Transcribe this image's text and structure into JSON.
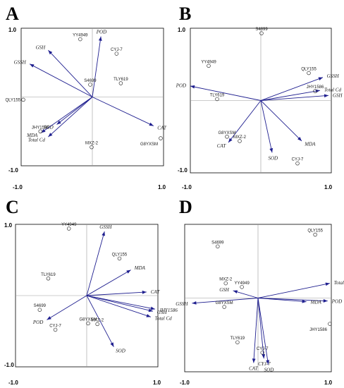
{
  "figure": {
    "colors": {
      "vector": "#1f1f8f",
      "point": "#333333",
      "frame": "#000000",
      "zero_line": "#9a9a9a"
    }
  },
  "chart_data": [
    {
      "type": "scatter",
      "panel": "A",
      "xlim": [
        -1.0,
        1.0
      ],
      "ylim": [
        -1.0,
        1.0
      ],
      "x_ticks": [
        "-1.0",
        "1.0"
      ],
      "y_ticks": [
        "1.0",
        "-1.0"
      ],
      "vectors": [
        {
          "name": "POD",
          "x": 0.12,
          "y": 0.88
        },
        {
          "name": "GSH",
          "x": -0.62,
          "y": 0.68
        },
        {
          "name": "GSSH",
          "x": -0.88,
          "y": 0.48
        },
        {
          "name": "CAT",
          "x": 0.86,
          "y": -0.42
        },
        {
          "name": "SOD",
          "x": -0.5,
          "y": -0.4
        },
        {
          "name": "MDA",
          "x": -0.72,
          "y": -0.52
        },
        {
          "name": "Total Cd",
          "x": -0.62,
          "y": -0.58
        }
      ],
      "points": [
        {
          "name": "YY4949",
          "x": -0.17,
          "y": 0.84
        },
        {
          "name": "CYJ-7",
          "x": 0.34,
          "y": 0.63
        },
        {
          "name": "S4699",
          "x": -0.03,
          "y": 0.18
        },
        {
          "name": "TLY619",
          "x": 0.4,
          "y": 0.2
        },
        {
          "name": "QLY155",
          "x": -0.97,
          "y": -0.04
        },
        {
          "name": "JHY1586",
          "x": -0.73,
          "y": -0.5
        },
        {
          "name": "G8YXSM",
          "x": 0.96,
          "y": -0.6
        },
        {
          "name": "MXZ-2",
          "x": -0.01,
          "y": -0.73
        }
      ]
    },
    {
      "type": "scatter",
      "panel": "B",
      "xlim": [
        -1.0,
        1.0
      ],
      "ylim": [
        -1.0,
        1.0
      ],
      "x_ticks": [
        "-1.0",
        "1.0"
      ],
      "y_ticks": [
        "1.0",
        "-1.0"
      ],
      "vectors": [
        {
          "name": "POD",
          "x": -1.0,
          "y": 0.2
        },
        {
          "name": "GSSH",
          "x": 0.88,
          "y": 0.32
        },
        {
          "name": "Total Cd",
          "x": 0.84,
          "y": 0.14
        },
        {
          "name": "GSH",
          "x": 0.96,
          "y": 0.07
        },
        {
          "name": "MDA",
          "x": 0.58,
          "y": -0.56
        },
        {
          "name": "CAT",
          "x": -0.46,
          "y": -0.58
        },
        {
          "name": "SOD",
          "x": 0.16,
          "y": -0.72
        }
      ],
      "points": [
        {
          "name": "S4699",
          "x": 0.01,
          "y": 0.93
        },
        {
          "name": "YY4949",
          "x": -0.74,
          "y": 0.48
        },
        {
          "name": "QLY155",
          "x": 0.68,
          "y": 0.38
        },
        {
          "name": "JHY1586",
          "x": 0.77,
          "y": 0.13
        },
        {
          "name": "TLY619",
          "x": -0.62,
          "y": 0.02
        },
        {
          "name": "G8YXSM",
          "x": -0.48,
          "y": -0.5
        },
        {
          "name": "MXZ-2",
          "x": -0.3,
          "y": -0.56
        },
        {
          "name": "CYJ-7",
          "x": 0.52,
          "y": -0.87
        }
      ]
    },
    {
      "type": "scatter",
      "panel": "C",
      "xlim": [
        -1.0,
        1.0
      ],
      "ylim": [
        -1.0,
        1.0
      ],
      "x_ticks": [
        "-1.0",
        "1.0"
      ],
      "y_ticks": [
        "1.0",
        "-1.0"
      ],
      "vectors": [
        {
          "name": "GSSH",
          "x": 0.25,
          "y": 0.9
        },
        {
          "name": "MDA",
          "x": 0.62,
          "y": 0.36
        },
        {
          "name": "CAT",
          "x": 0.84,
          "y": 0.05
        },
        {
          "name": "GSH",
          "x": 0.93,
          "y": -0.22
        },
        {
          "name": "JHY1586",
          "x": 0.96,
          "y": -0.19
        },
        {
          "name": "Total Cd",
          "x": 0.9,
          "y": -0.3
        },
        {
          "name": "SOD",
          "x": 0.38,
          "y": -0.72
        },
        {
          "name": "POD",
          "x": -0.56,
          "y": -0.34
        }
      ],
      "points": [
        {
          "name": "YY4949",
          "x": -0.25,
          "y": 0.94
        },
        {
          "name": "QLY155",
          "x": 0.46,
          "y": 0.52
        },
        {
          "name": "TLY619",
          "x": -0.54,
          "y": 0.24
        },
        {
          "name": "S4699",
          "x": -0.66,
          "y": -0.2
        },
        {
          "name": "G8YXSM",
          "x": 0.02,
          "y": -0.39
        },
        {
          "name": "MXZ-2",
          "x": 0.15,
          "y": -0.4
        },
        {
          "name": "CYJ-7",
          "x": -0.44,
          "y": -0.48
        }
      ]
    },
    {
      "type": "scatter",
      "panel": "D",
      "xlim": [
        -1.0,
        1.0
      ],
      "ylim": [
        -1.0,
        1.0
      ],
      "x_ticks": [
        "-1.0",
        "1.0"
      ],
      "y_ticks": [],
      "vectors": [
        {
          "name": "Total Cd",
          "x": 0.98,
          "y": 0.2
        },
        {
          "name": "POD",
          "x": 0.95,
          "y": -0.04
        },
        {
          "name": "MDA",
          "x": 0.66,
          "y": -0.05
        },
        {
          "name": "GSH",
          "x": -0.34,
          "y": 0.1
        },
        {
          "name": "GSSH",
          "x": -0.9,
          "y": -0.07
        },
        {
          "name": "CAT",
          "x": -0.06,
          "y": -0.88
        },
        {
          "name": "CYJ-7",
          "x": 0.08,
          "y": -0.82
        },
        {
          "name": "SOD",
          "x": 0.14,
          "y": -0.9
        }
      ],
      "points": [
        {
          "name": "QLY155",
          "x": 0.78,
          "y": 0.86
        },
        {
          "name": "S4699",
          "x": -0.55,
          "y": 0.7
        },
        {
          "name": "MXZ-2",
          "x": -0.44,
          "y": 0.2
        },
        {
          "name": "YY4949",
          "x": -0.22,
          "y": 0.15
        },
        {
          "name": "G8YXSM",
          "x": -0.46,
          "y": -0.12
        },
        {
          "name": "JHY1586",
          "x": 0.98,
          "y": -0.35
        },
        {
          "name": "TLY619",
          "x": -0.28,
          "y": -0.6
        },
        {
          "name": "CYJ-7",
          "x": 0.06,
          "y": -0.74
        }
      ]
    }
  ]
}
